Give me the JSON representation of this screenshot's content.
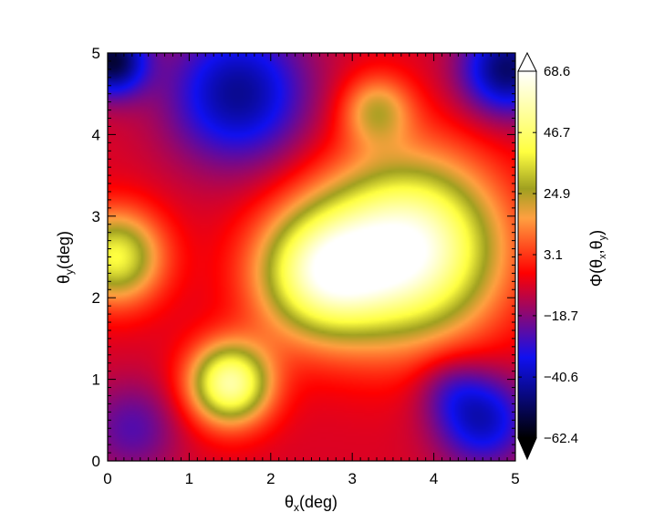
{
  "chart_data": {
    "type": "heatmap",
    "xlabel": {
      "main": "θ",
      "sub": "x",
      "unit": "(deg)"
    },
    "ylabel": {
      "main": "θ",
      "sub": "y",
      "unit": "(deg)"
    },
    "colorbar_label": {
      "main": "Φ(θ",
      "sub1": "x",
      "mid": ",θ",
      "sub2": "y",
      "end": ")"
    },
    "xlim": [
      0,
      5
    ],
    "ylim": [
      0,
      5
    ],
    "x_ticks": [
      "0",
      "1",
      "2",
      "3",
      "4",
      "5"
    ],
    "y_ticks": [
      "0",
      "1",
      "2",
      "3",
      "4",
      "5"
    ],
    "colorbar_range": [
      -62.4,
      68.6
    ],
    "colorbar_ticks": [
      "68.6",
      "46.7",
      "24.9",
      "3.1",
      "−18.7",
      "−40.6",
      "−62.4"
    ],
    "colormap": [
      "#000000",
      "#1010f0",
      "#ff0000",
      "#ffa040",
      "#a0a020",
      "#ffff40",
      "#ffffff"
    ],
    "field_features": [
      {
        "x": 3.7,
        "y": 2.6,
        "value": 68,
        "sigma": 0.75
      },
      {
        "x": 2.6,
        "y": 2.3,
        "value": 48,
        "sigma": 0.55
      },
      {
        "x": 1.5,
        "y": 0.95,
        "value": 55,
        "sigma": 0.35
      },
      {
        "x": 0.1,
        "y": 2.5,
        "value": 40,
        "sigma": 0.4
      },
      {
        "x": 3.3,
        "y": 4.3,
        "value": 20,
        "sigma": 0.3
      },
      {
        "x": 1.6,
        "y": 4.5,
        "value": -45,
        "sigma": 0.6
      },
      {
        "x": 0.05,
        "y": 4.9,
        "value": -55,
        "sigma": 0.3
      },
      {
        "x": 4.6,
        "y": 0.5,
        "value": -40,
        "sigma": 0.4
      },
      {
        "x": 0.3,
        "y": 0.4,
        "value": -25,
        "sigma": 0.4
      },
      {
        "x": 4.2,
        "y": 0.9,
        "value": -20,
        "sigma": 0.3
      },
      {
        "x": 4.9,
        "y": 4.8,
        "value": -50,
        "sigma": 0.4
      }
    ]
  }
}
